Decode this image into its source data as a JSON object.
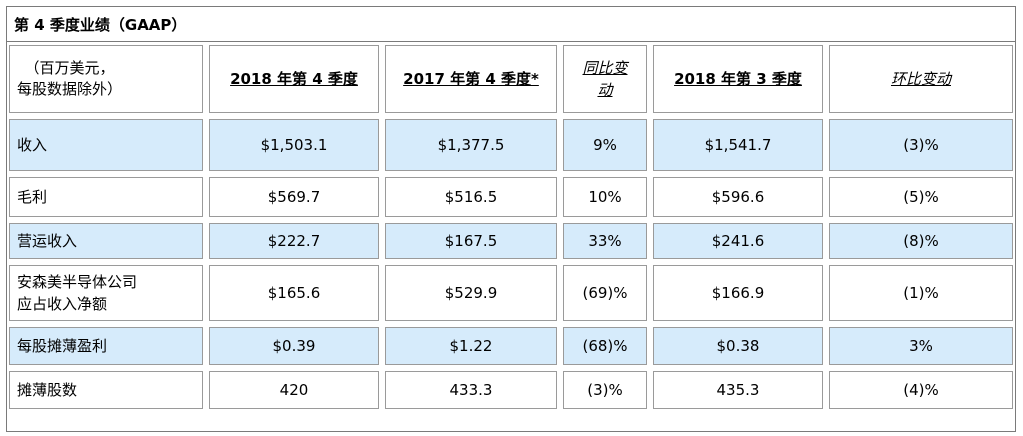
{
  "title": "第 4 季度业绩（GAAP）",
  "header": {
    "label": "（百万美元，\n每股数据除外）",
    "columns": [
      "2018 年第 4 季度",
      "2017 年第 4 季度*",
      "同比变\n动",
      "2018 年第 3 季度",
      "环比变动"
    ]
  },
  "rows": [
    {
      "label": "收入",
      "values": [
        "$1,503.1",
        "$1,377.5",
        "9%",
        "$1,541.7",
        "(3)%"
      ]
    },
    {
      "label": "毛利",
      "values": [
        "$569.7",
        "$516.5",
        "10%",
        "$596.6",
        "(5)%"
      ]
    },
    {
      "label": "营运收入",
      "values": [
        "$222.7",
        "$167.5",
        "33%",
        "$241.6",
        "(8)%"
      ]
    },
    {
      "label": "安森美半导体公司\n应占收入净额",
      "values": [
        "$165.6",
        "$529.9",
        "(69)%",
        "$166.9",
        "(1)%"
      ]
    },
    {
      "label": "每股摊薄盈利",
      "values": [
        "$0.39",
        "$1.22",
        "(68)%",
        "$0.38",
        "3%"
      ]
    },
    {
      "label": "摊薄股数",
      "values": [
        "420",
        "433.3",
        "(3)%",
        "435.3",
        "(4)%"
      ]
    }
  ],
  "colors": {
    "highlight_row": "#d6ebfb",
    "border": "#9a9a9a"
  }
}
